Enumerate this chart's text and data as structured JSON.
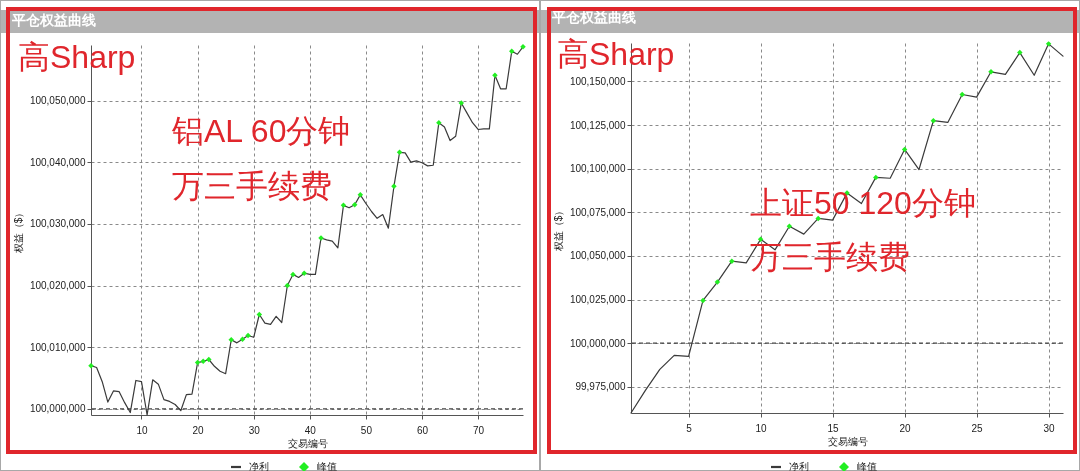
{
  "chart_data": [
    {
      "type": "line",
      "title": "平仓权益曲线",
      "xlabel": "交易编号",
      "ylabel": "权益（$）",
      "x": [
        1,
        2,
        3,
        4,
        5,
        6,
        7,
        8,
        9,
        10,
        11,
        12,
        13,
        14,
        15,
        16,
        17,
        18,
        19,
        20,
        21,
        22,
        23,
        24,
        25,
        26,
        27,
        28,
        29,
        30,
        31,
        32,
        33,
        34,
        35,
        36,
        37,
        38,
        39,
        40,
        41,
        42,
        43,
        44,
        45,
        46,
        47,
        48,
        49,
        50,
        51,
        52,
        53,
        54,
        55,
        56,
        57,
        58,
        59,
        60,
        61,
        62,
        63,
        64,
        65,
        66,
        67,
        68,
        69,
        70,
        71,
        72,
        73,
        74,
        75,
        76,
        77,
        78
      ],
      "series": [
        {
          "name": "净利",
          "color": "#3a3a3a",
          "values": [
            100007000,
            100006700,
            100004400,
            100001100,
            100002900,
            100002800,
            100001000,
            99999400,
            100004600,
            100004400,
            99999000,
            100004700,
            100004000,
            100001500,
            100001200,
            100000700,
            99999700,
            100002300,
            100002400,
            100007500,
            100007700,
            100008000,
            100006900,
            100006100,
            100005700,
            100011200,
            100010700,
            100011300,
            100011900,
            100011600,
            100015300,
            100013900,
            100013700,
            100015000,
            100014000,
            100020000,
            100021800,
            100021300,
            100022000,
            100021800,
            100021800,
            100027700,
            100027400,
            100027200,
            100026100,
            100033000,
            100032600,
            100033100,
            100034700,
            100033300,
            100032000,
            100030900,
            100031500,
            100029300,
            100036100,
            100041600,
            100041500,
            100040000,
            100040200,
            100039900,
            100039400,
            100039500,
            100046400,
            100045700,
            100043500,
            100044200,
            100049600,
            100048000,
            100046400,
            100045300,
            100045400,
            100045400,
            100054100,
            100051900,
            100051900,
            100058000,
            100057500,
            100058700
          ]
        },
        {
          "name": "峰值",
          "type": "scatter",
          "marker": "diamond",
          "color": "#22ee22",
          "x": [
            1,
            20,
            21,
            22,
            26,
            28,
            29,
            31,
            36,
            37,
            39,
            42,
            46,
            48,
            49,
            55,
            56,
            63,
            67,
            73,
            76,
            78
          ],
          "values": [
            100007000,
            100007500,
            100007700,
            100008000,
            100011200,
            100011300,
            100011900,
            100015300,
            100020000,
            100021800,
            100022000,
            100027700,
            100033000,
            100033100,
            100034700,
            100036100,
            100041600,
            100046400,
            100049600,
            100054100,
            100058000,
            100058700
          ]
        }
      ],
      "xlim": [
        1,
        78
      ],
      "xticks": [
        10,
        20,
        30,
        40,
        50,
        60,
        70
      ],
      "ylim": [
        99999000,
        100059000
      ],
      "yticks": [
        {
          "value": 100000000,
          "label": "100,000,000"
        },
        {
          "value": 100010000,
          "label": "100,010,000"
        },
        {
          "value": 100020000,
          "label": "100,020,000"
        },
        {
          "value": 100030000,
          "label": "100,030,000"
        },
        {
          "value": 100040000,
          "label": "100,040,000"
        },
        {
          "value": 100050000,
          "label": "100,050,000"
        }
      ],
      "grid": true,
      "legend": "bottom",
      "ref_lines": [
        {
          "axis": "y",
          "value": 100000000,
          "color": "#444444",
          "line_style": "dashed"
        }
      ],
      "annotations": [
        "高Sharp",
        "铝AL 60分钟",
        "万三手续费"
      ]
    },
    {
      "type": "line",
      "title": "平仓权益曲线",
      "xlabel": "交易编号",
      "ylabel": "权益（$）",
      "x": [
        1,
        2,
        3,
        4,
        5,
        6,
        7,
        8,
        9,
        10,
        11,
        12,
        13,
        14,
        15,
        16,
        17,
        18,
        19,
        20,
        21,
        22,
        23,
        24,
        25,
        26,
        27,
        28,
        29,
        30,
        31
      ],
      "series": [
        {
          "name": "净利",
          "color": "#3a3a3a",
          "values": [
            99960000,
            99973000,
            99985000,
            99993000,
            99992500,
            100024500,
            100035000,
            100047000,
            100046000,
            100059500,
            100053500,
            100067000,
            100062500,
            100071500,
            100070500,
            100086000,
            100080000,
            100095000,
            100094500,
            100111000,
            100099500,
            100127500,
            100126500,
            100142500,
            100141000,
            100155500,
            100154000,
            100166500,
            100153500,
            100171500,
            100164500
          ]
        },
        {
          "name": "峰值",
          "type": "scatter",
          "marker": "diamond",
          "color": "#22ee22",
          "x": [
            6,
            7,
            8,
            10,
            12,
            14,
            16,
            18,
            20,
            22,
            24,
            26,
            28,
            30
          ],
          "values": [
            100024500,
            100035000,
            100047000,
            100059500,
            100067000,
            100071500,
            100086000,
            100095000,
            100111000,
            100127500,
            100142500,
            100155500,
            100166500,
            100171500
          ]
        }
      ],
      "xlim": [
        1,
        31
      ],
      "xticks": [
        5,
        10,
        15,
        20,
        25,
        30
      ],
      "ylim": [
        99960000,
        100172000
      ],
      "yticks": [
        {
          "value": 99975000,
          "label": "99,975,000"
        },
        {
          "value": 100000000,
          "label": "100,000,000"
        },
        {
          "value": 100025000,
          "label": "100,025,000"
        },
        {
          "value": 100050000,
          "label": "100,050,000"
        },
        {
          "value": 100075000,
          "label": "100,075,000"
        },
        {
          "value": 100100000,
          "label": "100,100,000"
        },
        {
          "value": 100125000,
          "label": "100,125,000"
        },
        {
          "value": 100150000,
          "label": "100,150,000"
        }
      ],
      "grid": true,
      "legend": "bottom",
      "ref_lines": [
        {
          "axis": "y",
          "value": 100000000,
          "color": "#444444",
          "line_style": "dashed"
        }
      ],
      "annotations": [
        "高Sharp",
        "上证50 120分钟",
        "万三手续费"
      ]
    }
  ]
}
